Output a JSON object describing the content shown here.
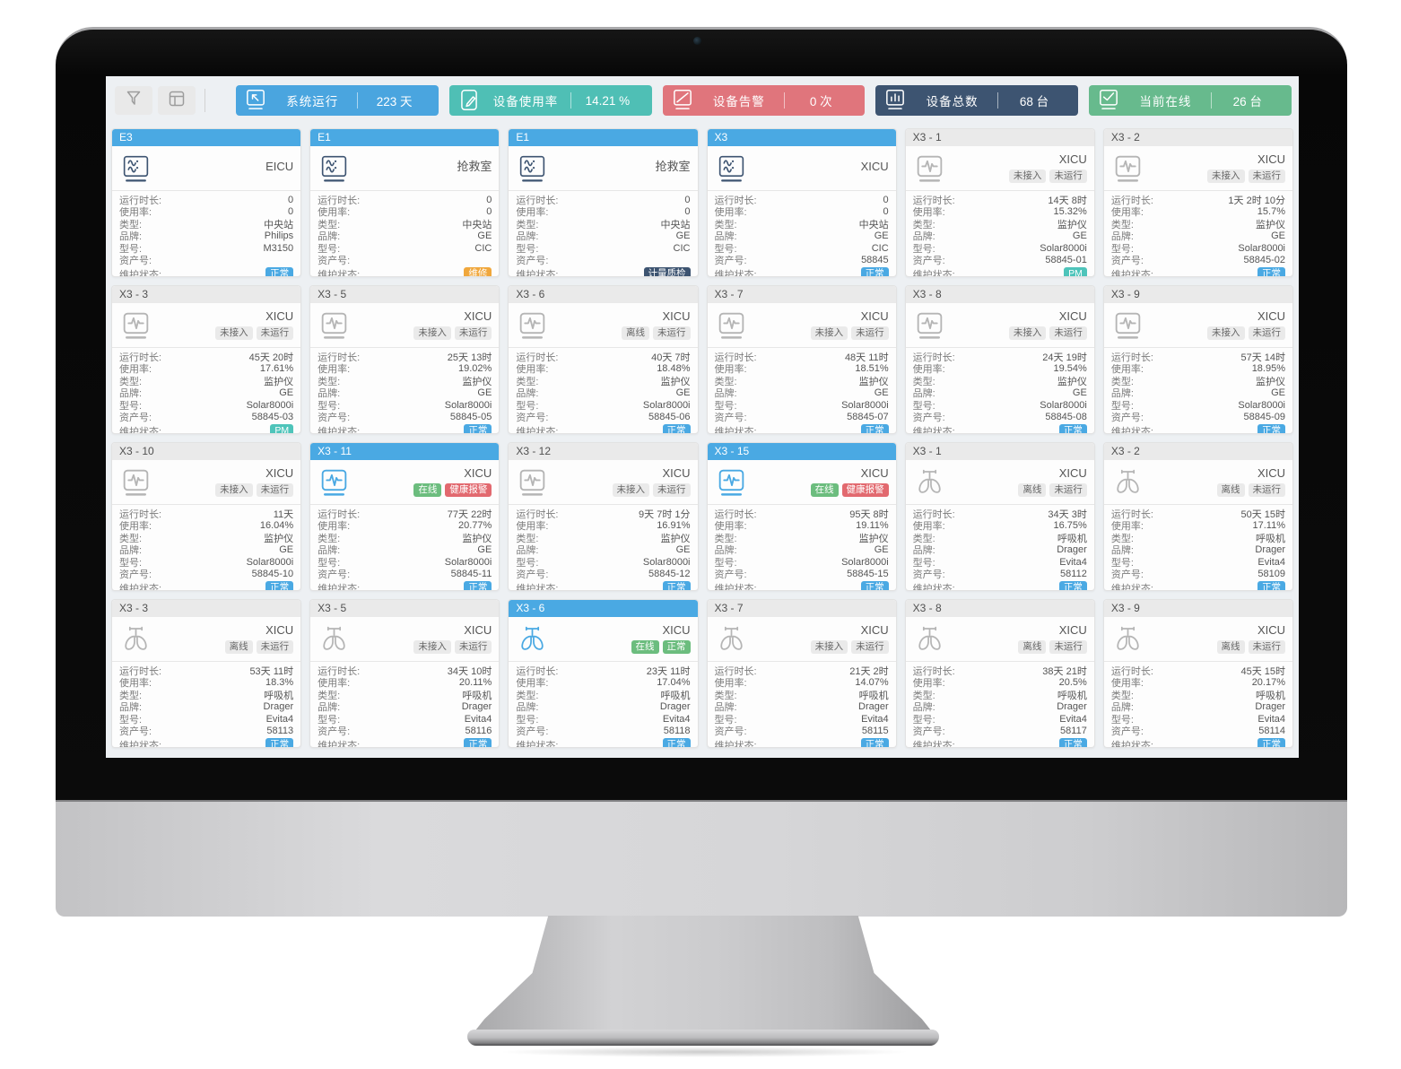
{
  "toolbar": {
    "filter_button": {
      "icon": "filter-icon"
    },
    "layout_button": {
      "icon": "layout-icon"
    },
    "stats": [
      {
        "label": "系统运行",
        "value": "223 天",
        "color": "#4aa5df",
        "icon": "monitor-cursor-icon"
      },
      {
        "label": "设备使用率",
        "value": "14.21 %",
        "color": "#4fbfb5",
        "icon": "monitor-edit-icon"
      },
      {
        "label": "设备告警",
        "value": "0 次",
        "color": "#e0757c",
        "icon": "monitor-slash-icon"
      },
      {
        "label": "设备总数",
        "value": "68 台",
        "color": "#3d5471",
        "icon": "bar-chart-icon"
      },
      {
        "label": "当前在线",
        "value": "26 台",
        "color": "#67ba8d",
        "icon": "monitor-check-icon"
      }
    ]
  },
  "field_labels": [
    "运行时长:",
    "使用率:",
    "类型:",
    "品牌:",
    "型号:",
    "资产号:",
    "维护状态:"
  ],
  "colors": {
    "accent_blue": "#4aa9e3",
    "teal": "#4ec4ba",
    "orange": "#f0a73c",
    "navy": "#3d5471",
    "green": "#6cbd7e",
    "red": "#e2696f",
    "toolbar_red": "#e0757c",
    "toolbar_green": "#67ba8d",
    "screen_bg": "#edf0f3"
  },
  "cards": [
    {
      "id": "E3",
      "header": "blue",
      "icon": "central-station",
      "icon_color": "navy",
      "location": "EICU",
      "badges": [],
      "runtime": "0",
      "usage": "0",
      "type": "中央站",
      "brand": "Philips",
      "model": "M3150",
      "asset": "",
      "maintenance": {
        "text": "正常",
        "style": "blue"
      }
    },
    {
      "id": "E1",
      "header": "blue",
      "icon": "central-station",
      "icon_color": "navy",
      "location": "抢救室",
      "badges": [],
      "runtime": "0",
      "usage": "0",
      "type": "中央站",
      "brand": "GE",
      "model": "CIC",
      "asset": "",
      "maintenance": {
        "text": "维修",
        "style": "orange"
      }
    },
    {
      "id": "E1",
      "header": "blue",
      "icon": "central-station",
      "icon_color": "navy",
      "location": "抢救室",
      "badges": [],
      "runtime": "0",
      "usage": "0",
      "type": "中央站",
      "brand": "GE",
      "model": "CIC",
      "asset": "",
      "maintenance": {
        "text": "计量质检",
        "style": "navy"
      }
    },
    {
      "id": "X3",
      "header": "blue",
      "icon": "central-station",
      "icon_color": "navy",
      "location": "XICU",
      "badges": [],
      "runtime": "0",
      "usage": "0",
      "type": "中央站",
      "brand": "GE",
      "model": "CIC",
      "asset": "58845",
      "maintenance": {
        "text": "正常",
        "style": "blue"
      }
    },
    {
      "id": "X3 - 1",
      "header": "gray",
      "icon": "patient-monitor",
      "icon_color": "gray",
      "location": "XICU",
      "badges": [
        {
          "text": "未接入",
          "style": "gray"
        },
        {
          "text": "未运行",
          "style": "gray"
        }
      ],
      "runtime": "14天 8时",
      "usage": "15.32%",
      "type": "监护仪",
      "brand": "GE",
      "model": "Solar8000i",
      "asset": "58845-01",
      "maintenance": {
        "text": "PM",
        "style": "teal"
      }
    },
    {
      "id": "X3 - 2",
      "header": "gray",
      "icon": "patient-monitor",
      "icon_color": "gray",
      "location": "XICU",
      "badges": [
        {
          "text": "未接入",
          "style": "gray"
        },
        {
          "text": "未运行",
          "style": "gray"
        }
      ],
      "runtime": "1天 2时 10分",
      "usage": "15.7%",
      "type": "监护仪",
      "brand": "GE",
      "model": "Solar8000i",
      "asset": "58845-02",
      "maintenance": {
        "text": "正常",
        "style": "blue"
      }
    },
    {
      "id": "X3 - 3",
      "header": "gray",
      "icon": "patient-monitor",
      "icon_color": "gray",
      "location": "XICU",
      "badges": [
        {
          "text": "未接入",
          "style": "gray"
        },
        {
          "text": "未运行",
          "style": "gray"
        }
      ],
      "runtime": "45天 20时",
      "usage": "17.61%",
      "type": "监护仪",
      "brand": "GE",
      "model": "Solar8000i",
      "asset": "58845-03",
      "maintenance": {
        "text": "PM",
        "style": "teal"
      }
    },
    {
      "id": "X3 - 5",
      "header": "gray",
      "icon": "patient-monitor",
      "icon_color": "gray",
      "location": "XICU",
      "badges": [
        {
          "text": "未接入",
          "style": "gray"
        },
        {
          "text": "未运行",
          "style": "gray"
        }
      ],
      "runtime": "25天 13时",
      "usage": "19.02%",
      "type": "监护仪",
      "brand": "GE",
      "model": "Solar8000i",
      "asset": "58845-05",
      "maintenance": {
        "text": "正常",
        "style": "blue"
      }
    },
    {
      "id": "X3 - 6",
      "header": "gray",
      "icon": "patient-monitor",
      "icon_color": "gray",
      "location": "XICU",
      "badges": [
        {
          "text": "离线",
          "style": "gray"
        },
        {
          "text": "未运行",
          "style": "gray"
        }
      ],
      "runtime": "40天 7时",
      "usage": "18.48%",
      "type": "监护仪",
      "brand": "GE",
      "model": "Solar8000i",
      "asset": "58845-06",
      "maintenance": {
        "text": "正常",
        "style": "blue"
      }
    },
    {
      "id": "X3 - 7",
      "header": "gray",
      "icon": "patient-monitor",
      "icon_color": "gray",
      "location": "XICU",
      "badges": [
        {
          "text": "未接入",
          "style": "gray"
        },
        {
          "text": "未运行",
          "style": "gray"
        }
      ],
      "runtime": "48天 11时",
      "usage": "18.51%",
      "type": "监护仪",
      "brand": "GE",
      "model": "Solar8000i",
      "asset": "58845-07",
      "maintenance": {
        "text": "正常",
        "style": "blue"
      }
    },
    {
      "id": "X3 - 8",
      "header": "gray",
      "icon": "patient-monitor",
      "icon_color": "gray",
      "location": "XICU",
      "badges": [
        {
          "text": "未接入",
          "style": "gray"
        },
        {
          "text": "未运行",
          "style": "gray"
        }
      ],
      "runtime": "24天 19时",
      "usage": "19.54%",
      "type": "监护仪",
      "brand": "GE",
      "model": "Solar8000i",
      "asset": "58845-08",
      "maintenance": {
        "text": "正常",
        "style": "blue"
      }
    },
    {
      "id": "X3 - 9",
      "header": "gray",
      "icon": "patient-monitor",
      "icon_color": "gray",
      "location": "XICU",
      "badges": [
        {
          "text": "未接入",
          "style": "gray"
        },
        {
          "text": "未运行",
          "style": "gray"
        }
      ],
      "runtime": "57天 14时",
      "usage": "18.95%",
      "type": "监护仪",
      "brand": "GE",
      "model": "Solar8000i",
      "asset": "58845-09",
      "maintenance": {
        "text": "正常",
        "style": "blue"
      }
    },
    {
      "id": "X3 - 10",
      "header": "gray",
      "icon": "patient-monitor",
      "icon_color": "gray",
      "location": "XICU",
      "badges": [
        {
          "text": "未接入",
          "style": "gray"
        },
        {
          "text": "未运行",
          "style": "gray"
        }
      ],
      "runtime": "11天",
      "usage": "16.04%",
      "type": "监护仪",
      "brand": "GE",
      "model": "Solar8000i",
      "asset": "58845-10",
      "maintenance": {
        "text": "正常",
        "style": "blue"
      }
    },
    {
      "id": "X3 - 11",
      "header": "blue",
      "icon": "patient-monitor",
      "icon_color": "blue",
      "location": "XICU",
      "badges": [
        {
          "text": "在线",
          "style": "green"
        },
        {
          "text": "健康报警",
          "style": "red"
        }
      ],
      "runtime": "77天 22时",
      "usage": "20.77%",
      "type": "监护仪",
      "brand": "GE",
      "model": "Solar8000i",
      "asset": "58845-11",
      "maintenance": {
        "text": "正常",
        "style": "blue"
      }
    },
    {
      "id": "X3 - 12",
      "header": "gray",
      "icon": "patient-monitor",
      "icon_color": "gray",
      "location": "XICU",
      "badges": [
        {
          "text": "未接入",
          "style": "gray"
        },
        {
          "text": "未运行",
          "style": "gray"
        }
      ],
      "runtime": "9天 7时 1分",
      "usage": "16.91%",
      "type": "监护仪",
      "brand": "GE",
      "model": "Solar8000i",
      "asset": "58845-12",
      "maintenance": {
        "text": "正常",
        "style": "blue"
      }
    },
    {
      "id": "X3 - 15",
      "header": "blue",
      "icon": "patient-monitor",
      "icon_color": "blue",
      "location": "XICU",
      "badges": [
        {
          "text": "在线",
          "style": "green"
        },
        {
          "text": "健康报警",
          "style": "red"
        }
      ],
      "runtime": "95天 8时",
      "usage": "19.11%",
      "type": "监护仪",
      "brand": "GE",
      "model": "Solar8000i",
      "asset": "58845-15",
      "maintenance": {
        "text": "正常",
        "style": "blue"
      }
    },
    {
      "id": "X3 - 1",
      "header": "gray",
      "icon": "ventilator",
      "icon_color": "gray",
      "location": "XICU",
      "badges": [
        {
          "text": "离线",
          "style": "gray"
        },
        {
          "text": "未运行",
          "style": "gray"
        }
      ],
      "runtime": "34天 3时",
      "usage": "16.75%",
      "type": "呼吸机",
      "brand": "Drager",
      "model": "Evita4",
      "asset": "58112",
      "maintenance": {
        "text": "正常",
        "style": "blue"
      }
    },
    {
      "id": "X3 - 2",
      "header": "gray",
      "icon": "ventilator",
      "icon_color": "gray",
      "location": "XICU",
      "badges": [
        {
          "text": "离线",
          "style": "gray"
        },
        {
          "text": "未运行",
          "style": "gray"
        }
      ],
      "runtime": "50天 15时",
      "usage": "17.11%",
      "type": "呼吸机",
      "brand": "Drager",
      "model": "Evita4",
      "asset": "58109",
      "maintenance": {
        "text": "正常",
        "style": "blue"
      }
    },
    {
      "id": "X3 - 3",
      "header": "gray",
      "icon": "ventilator",
      "icon_color": "gray",
      "location": "XICU",
      "badges": [
        {
          "text": "离线",
          "style": "gray"
        },
        {
          "text": "未运行",
          "style": "gray"
        }
      ],
      "runtime": "53天 11时",
      "usage": "18.3%",
      "type": "呼吸机",
      "brand": "Drager",
      "model": "Evita4",
      "asset": "58113",
      "maintenance": {
        "text": "正常",
        "style": "blue"
      }
    },
    {
      "id": "X3 - 5",
      "header": "gray",
      "icon": "ventilator",
      "icon_color": "gray",
      "location": "XICU",
      "badges": [
        {
          "text": "未接入",
          "style": "gray"
        },
        {
          "text": "未运行",
          "style": "gray"
        }
      ],
      "runtime": "34天 10时",
      "usage": "20.11%",
      "type": "呼吸机",
      "brand": "Drager",
      "model": "Evita4",
      "asset": "58116",
      "maintenance": {
        "text": "正常",
        "style": "blue"
      }
    },
    {
      "id": "X3 - 6",
      "header": "blue",
      "icon": "ventilator",
      "icon_color": "blue",
      "location": "XICU",
      "badges": [
        {
          "text": "在线",
          "style": "green"
        },
        {
          "text": "正常",
          "style": "green"
        }
      ],
      "runtime": "23天 11时",
      "usage": "17.04%",
      "type": "呼吸机",
      "brand": "Drager",
      "model": "Evita4",
      "asset": "58118",
      "maintenance": {
        "text": "正常",
        "style": "blue"
      }
    },
    {
      "id": "X3 - 7",
      "header": "gray",
      "icon": "ventilator",
      "icon_color": "gray",
      "location": "XICU",
      "badges": [
        {
          "text": "未接入",
          "style": "gray"
        },
        {
          "text": "未运行",
          "style": "gray"
        }
      ],
      "runtime": "21天 2时",
      "usage": "14.07%",
      "type": "呼吸机",
      "brand": "Drager",
      "model": "Evita4",
      "asset": "58115",
      "maintenance": {
        "text": "正常",
        "style": "blue"
      }
    },
    {
      "id": "X3 - 8",
      "header": "gray",
      "icon": "ventilator",
      "icon_color": "gray",
      "location": "XICU",
      "badges": [
        {
          "text": "离线",
          "style": "gray"
        },
        {
          "text": "未运行",
          "style": "gray"
        }
      ],
      "runtime": "38天 21时",
      "usage": "20.5%",
      "type": "呼吸机",
      "brand": "Drager",
      "model": "Evita4",
      "asset": "58117",
      "maintenance": {
        "text": "正常",
        "style": "blue"
      }
    },
    {
      "id": "X3 - 9",
      "header": "gray",
      "icon": "ventilator",
      "icon_color": "gray",
      "location": "XICU",
      "badges": [
        {
          "text": "离线",
          "style": "gray"
        },
        {
          "text": "未运行",
          "style": "gray"
        }
      ],
      "runtime": "45天 15时",
      "usage": "20.17%",
      "type": "呼吸机",
      "brand": "Drager",
      "model": "Evita4",
      "asset": "58114",
      "maintenance": {
        "text": "正常",
        "style": "blue"
      }
    }
  ]
}
